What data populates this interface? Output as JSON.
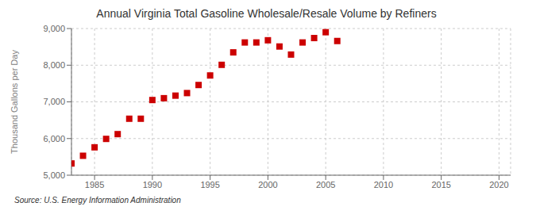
{
  "chart_data": {
    "type": "scatter",
    "title": "Annual Virginia Total Gasoline Wholesale/Resale Volume by Refiners",
    "ylabel": "Thousand Gallons per Day",
    "annotations": [
      "Source: U.S. Energy Information Administration"
    ],
    "x": [
      1983,
      1984,
      1985,
      1986,
      1987,
      1988,
      1989,
      1990,
      1991,
      1992,
      1993,
      1994,
      1995,
      1996,
      1997,
      1998,
      1999,
      2000,
      2001,
      2002,
      2003,
      2004,
      2005,
      2006
    ],
    "values": [
      5320,
      5530,
      5760,
      5990,
      6120,
      6540,
      6540,
      7050,
      7100,
      7170,
      7240,
      7460,
      7720,
      8010,
      8350,
      8620,
      8620,
      8680,
      8510,
      8290,
      8620,
      8740,
      8900,
      8660
    ],
    "xlim": [
      1983,
      2021
    ],
    "ylim": [
      5000,
      9000
    ],
    "xticks": [
      1985,
      1990,
      1995,
      2000,
      2005,
      2010,
      2015,
      2020
    ],
    "yticks": [
      {
        "value": 5000,
        "label": "5,000"
      },
      {
        "value": 6000,
        "label": "6,000"
      },
      {
        "value": 7000,
        "label": "7,000"
      },
      {
        "value": 8000,
        "label": "8,000"
      },
      {
        "value": 9000,
        "label": "9,000"
      }
    ],
    "color": "#cc0000",
    "marker": "square",
    "grid": true
  }
}
